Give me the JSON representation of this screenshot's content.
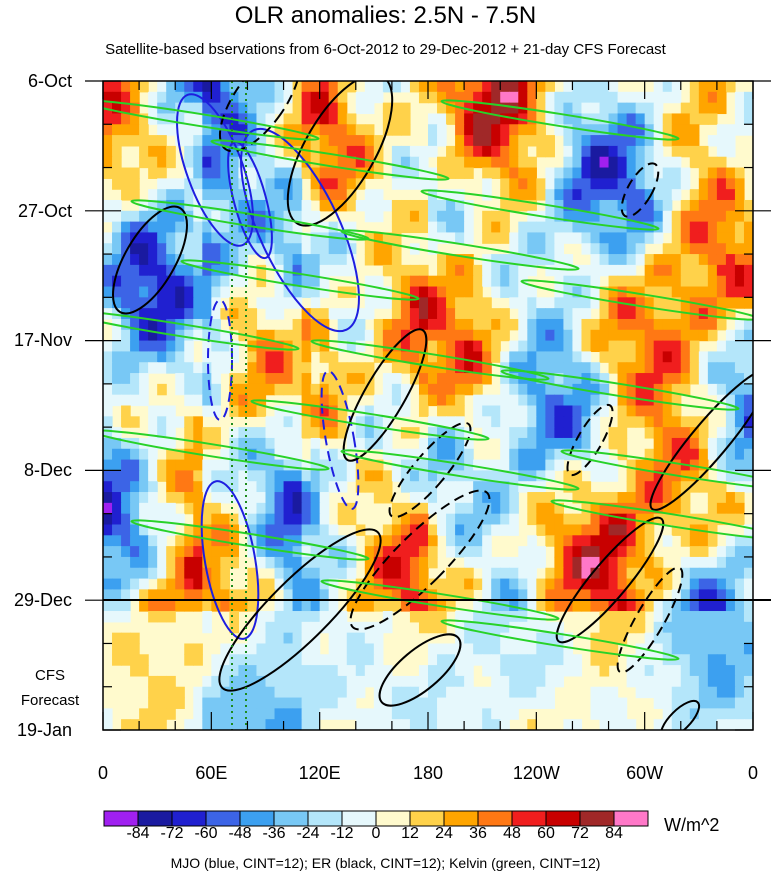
{
  "chart_data": {
    "type": "heatmap",
    "title": "OLR anomalies: 2.5N - 7.5N",
    "subtitle": "Satellite-based bservations from 6-Oct-2012 to 29-Dec-2012 + 21-day CFS Forecast",
    "x_tick_labels": [
      "0",
      "60E",
      "120E",
      "180",
      "120W",
      "60W",
      "0"
    ],
    "x_tick_longitudes_east": [
      0,
      60,
      120,
      180,
      240,
      300,
      360
    ],
    "xlim": [
      0,
      360
    ],
    "y_tick_labels": [
      "6-Oct",
      "27-Oct",
      "17-Nov",
      "8-Dec",
      "29-Dec",
      "19-Jan"
    ],
    "ylim": [
      "2012-10-06",
      "2013-01-19"
    ],
    "forecast_start": "2012-12-29",
    "forecast_label": [
      "CFS",
      "Forecast"
    ],
    "colorbar": {
      "levels": [
        "-84",
        "-72",
        "-60",
        "-48",
        "-36",
        "-24",
        "-12",
        "0",
        "12",
        "24",
        "36",
        "48",
        "60",
        "72",
        "84"
      ],
      "colors": [
        "#a020f0",
        "#1a1aa0",
        "#2020d0",
        "#3c64e6",
        "#3ca0f0",
        "#78c8f5",
        "#b4e6fa",
        "#e6f8fc",
        "#fffacd",
        "#ffd24a",
        "#ffa500",
        "#ff7814",
        "#f01e1e",
        "#c80000",
        "#a02828",
        "#ff78c8"
      ],
      "units": "W/m^2"
    },
    "contour_legend": "MJO (blue, CINT=12); ER (black, CINT=12); Kelvin (green, CINT=12)"
  }
}
